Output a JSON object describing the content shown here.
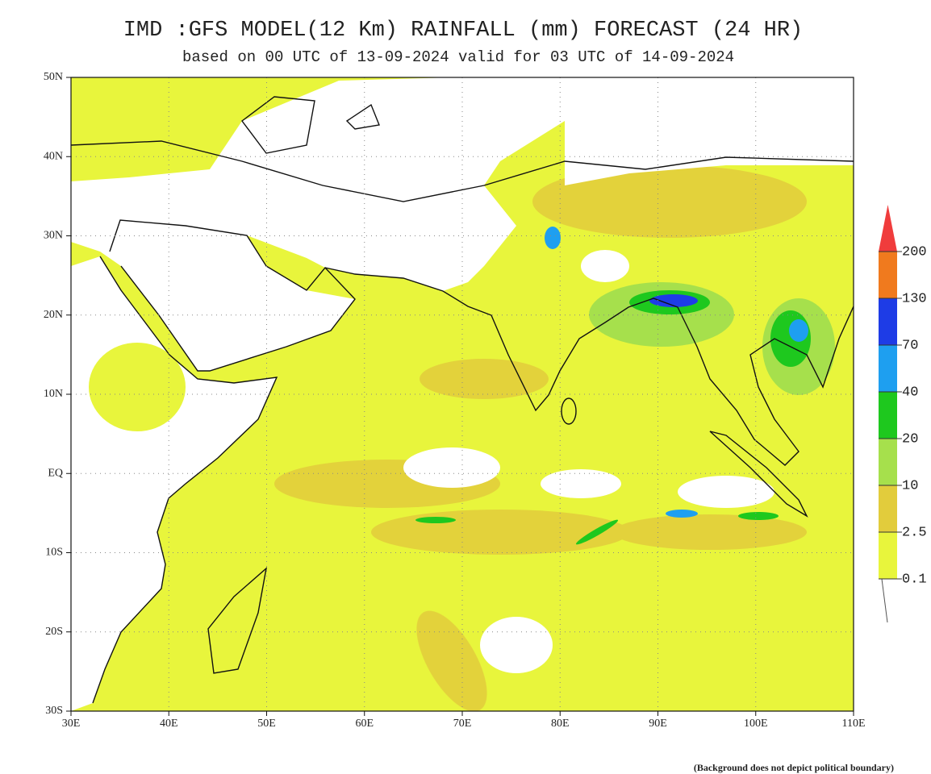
{
  "header": {
    "title": "IMD :GFS MODEL(12 Km) RAINFALL (mm) FORECAST (24 HR)",
    "subtitle": "based on 00 UTC of 13-09-2024 valid for 03 UTC of 14-09-2024"
  },
  "map": {
    "lat_labels": [
      "50N",
      "40N",
      "30N",
      "20N",
      "10N",
      "EQ",
      "10S",
      "20S",
      "30S"
    ],
    "lon_labels": [
      "30E",
      "40E",
      "50E",
      "60E",
      "70E",
      "80E",
      "90E",
      "100E",
      "110E"
    ]
  },
  "colorbar": {
    "levels": [
      0.1,
      2.5,
      10,
      20,
      40,
      70,
      130,
      200
    ],
    "colors": [
      "#e8f53c",
      "#e2cc3c",
      "#a6e04c",
      "#1ec81e",
      "#1e9ff0",
      "#1e3ce6",
      "#f07a1e",
      "#f03c3c"
    ]
  },
  "footer": "(Background does not depict political boundary)"
}
